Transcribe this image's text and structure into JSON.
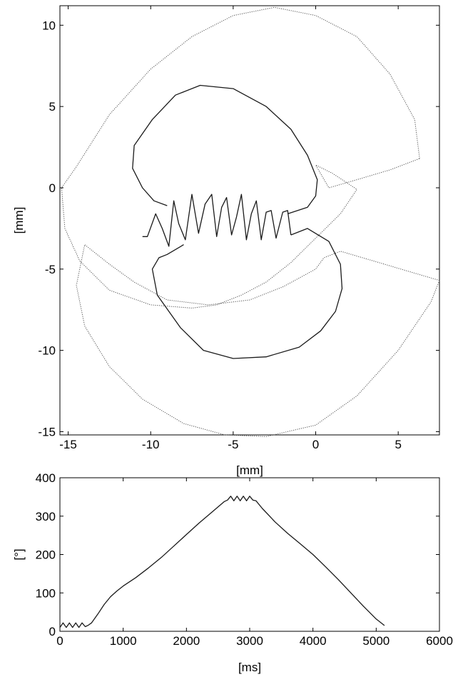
{
  "chart_data": [
    {
      "type": "line",
      "xlabel": "[mm]",
      "ylabel": "[mm]",
      "xlim": [
        -15.5,
        7.5
      ],
      "ylim": [
        -15.2,
        11.2
      ],
      "xticks": [
        -15,
        -10,
        -5,
        0,
        5
      ],
      "xtick_labels": [
        "-15",
        "-10",
        "-5",
        "0",
        "5"
      ],
      "yticks": [
        10,
        5,
        0,
        -5,
        -10,
        -15
      ],
      "ytick_labels": [
        "10",
        "5",
        "0",
        "-5",
        "-10",
        "-15"
      ],
      "grid": false,
      "series": [
        {
          "style": "dotted",
          "x": [
            6.3,
            6.0,
            4.5,
            2.5,
            0.0,
            -2.5,
            -5.0,
            -7.5,
            -10.0,
            -12.5,
            -14.5,
            -15.4,
            -15.2,
            -14.3,
            -12.5,
            -10.0,
            -7.5,
            -6.0,
            -4.5,
            -3.0,
            -1.5,
            0.0,
            1.5,
            2.5,
            1.0,
            0.0,
            0.8,
            2.5,
            4.5,
            6.3
          ],
          "y": [
            1.8,
            4.2,
            7.0,
            9.3,
            10.6,
            11.1,
            10.6,
            9.3,
            7.3,
            4.5,
            1.3,
            0.0,
            -2.5,
            -4.5,
            -6.3,
            -7.2,
            -7.4,
            -7.2,
            -6.6,
            -5.8,
            -4.6,
            -3.1,
            -1.6,
            -0.1,
            0.9,
            1.4,
            0.0,
            0.5,
            1.1,
            1.8
          ]
        },
        {
          "style": "dotted",
          "x": [
            7.5,
            5.5,
            3.5,
            1.5,
            0.5,
            0.0,
            -2.0,
            -4.0,
            -6.5,
            -9.0,
            -11.0,
            -12.5,
            -14.0,
            -14.5,
            -14.0,
            -12.5,
            -10.5,
            -8.0,
            -5.5,
            -3.0,
            0.0,
            2.5,
            5.0,
            7.0,
            7.5
          ],
          "y": [
            -5.7,
            -5.1,
            -4.5,
            -3.9,
            -4.3,
            -5.0,
            -6.1,
            -6.9,
            -7.2,
            -6.9,
            -5.8,
            -4.7,
            -3.5,
            -6.0,
            -8.5,
            -11.0,
            -13.0,
            -14.5,
            -15.2,
            -15.3,
            -14.6,
            -12.8,
            -10.0,
            -7.0,
            -5.7
          ]
        },
        {
          "style": "solid",
          "x": [
            -1.7,
            -0.5,
            0.0,
            0.1,
            -0.5,
            -1.5,
            -3.0,
            -5.0,
            -7.0,
            -8.5,
            -9.9,
            -11.0,
            -11.1,
            -10.5,
            -9.8,
            -9.0
          ],
          "y": [
            -1.6,
            -1.2,
            -0.5,
            0.5,
            2.0,
            3.6,
            5.0,
            6.1,
            6.3,
            5.7,
            4.2,
            2.6,
            1.2,
            0.0,
            -0.8,
            -1.1
          ]
        },
        {
          "style": "solid",
          "x": [
            -10.5,
            -10.2,
            -9.7,
            -9.3,
            -8.9,
            -8.6,
            -8.3,
            -7.9,
            -7.5,
            -7.1,
            -6.7,
            -6.3,
            -6.0,
            -5.7,
            -5.4,
            -5.1,
            -4.8,
            -4.5,
            -4.2,
            -3.9,
            -3.6,
            -3.3,
            -3.0,
            -2.7,
            -2.4,
            -2.0,
            -1.7,
            -1.5
          ],
          "y": [
            -3.0,
            -3.0,
            -1.6,
            -2.5,
            -3.6,
            -0.8,
            -2.2,
            -3.2,
            -0.4,
            -2.8,
            -1.0,
            -0.4,
            -3.0,
            -1.2,
            -0.6,
            -2.9,
            -1.8,
            -0.4,
            -3.2,
            -1.6,
            -0.8,
            -3.2,
            -1.5,
            -1.4,
            -3.1,
            -1.5,
            -1.4,
            -2.9
          ]
        },
        {
          "style": "solid",
          "x": [
            -1.5,
            -0.5,
            0.8,
            1.5,
            1.6,
            1.2,
            0.3,
            -1.0,
            -3.0,
            -5.0,
            -6.8,
            -8.2,
            -9.6,
            -9.9,
            -9.5,
            -9.0,
            -8.0
          ],
          "y": [
            -2.9,
            -2.5,
            -3.3,
            -4.7,
            -6.2,
            -7.6,
            -8.8,
            -9.8,
            -10.4,
            -10.5,
            -10.0,
            -8.6,
            -6.6,
            -5.0,
            -4.3,
            -4.1,
            -3.5
          ]
        }
      ]
    },
    {
      "type": "line",
      "xlabel": "[ms]",
      "ylabel": "[°]",
      "xlim": [
        0,
        6000
      ],
      "ylim": [
        0,
        400
      ],
      "xticks": [
        0,
        1000,
        2000,
        3000,
        4000,
        5000,
        6000
      ],
      "xtick_labels": [
        "0",
        "1000",
        "2000",
        "3000",
        "4000",
        "5000",
        "6000"
      ],
      "yticks": [
        0,
        100,
        200,
        300,
        400
      ],
      "ytick_labels": [
        "0",
        "100",
        "200",
        "300",
        "400"
      ],
      "grid": false,
      "series": [
        {
          "style": "solid",
          "x": [
            0,
            50,
            100,
            150,
            200,
            250,
            300,
            350,
            400,
            450,
            500,
            600,
            700,
            800,
            900,
            1000,
            1200,
            1400,
            1600,
            1800,
            2000,
            2200,
            2400,
            2600,
            2650,
            2700,
            2750,
            2800,
            2850,
            2900,
            2950,
            3000,
            3050,
            3100,
            3200,
            3400,
            3600,
            3800,
            4000,
            4200,
            4400,
            4600,
            4800,
            5000,
            5130
          ],
          "y": [
            10,
            22,
            10,
            22,
            10,
            22,
            10,
            22,
            12,
            16,
            22,
            45,
            70,
            90,
            105,
            118,
            140,
            165,
            192,
            222,
            252,
            282,
            310,
            338,
            342,
            352,
            340,
            352,
            340,
            352,
            340,
            352,
            342,
            340,
            320,
            285,
            255,
            228,
            200,
            168,
            135,
            100,
            65,
            32,
            15
          ]
        }
      ]
    }
  ]
}
